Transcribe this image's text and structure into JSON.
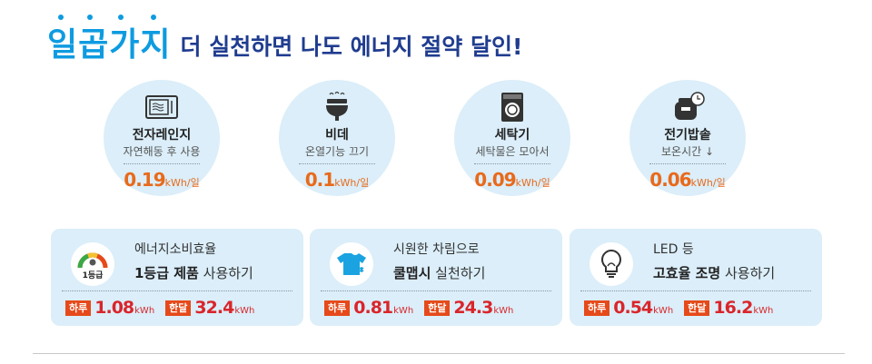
{
  "title": {
    "accent": "일곱가지",
    "rest": "더 실천하면 나도 에너지 절약 달인!"
  },
  "appliances": [
    {
      "name": "전자레인지",
      "tip": "자연해동 후 사용",
      "value": "0.19",
      "unit": "kWh/일",
      "icon": "microwave-icon"
    },
    {
      "name": "비데",
      "tip": "온열기능 끄기",
      "value": "0.1",
      "unit": "kWh/일",
      "icon": "bidet-icon"
    },
    {
      "name": "세탁기",
      "tip": "세탁물은 모아서",
      "value": "0.09",
      "unit": "kWh/일",
      "icon": "washing-machine-icon"
    },
    {
      "name": "전기밥솥",
      "tip": "보온시간 ↓",
      "value": "0.06",
      "unit": "kWh/일",
      "icon": "rice-cooker-icon"
    }
  ],
  "cards": [
    {
      "line1": "에너지소비효율",
      "line2_bold": "1등급 제품",
      "line2_rest": " 사용하기",
      "badge_text": "1등급",
      "icon": "efficiency-gauge-icon",
      "day_label": "하루",
      "day_value": "1.08",
      "day_unit": "kWh",
      "month_label": "한달",
      "month_value": "32.4",
      "month_unit": "kWh"
    },
    {
      "line1": "시원한 차림으로",
      "line2_bold": "쿨맵시",
      "line2_rest": " 실천하기",
      "icon": "cool-shirt-icon",
      "day_label": "하루",
      "day_value": "0.81",
      "day_unit": "kWh",
      "month_label": "한달",
      "month_value": "24.3",
      "month_unit": "kWh"
    },
    {
      "line1": "LED 등",
      "line2_bold": "고효율 조명",
      "line2_rest": " 사용하기",
      "icon": "light-bulb-icon",
      "day_label": "하루",
      "day_value": "0.54",
      "day_unit": "kWh",
      "month_label": "한달",
      "month_value": "16.2",
      "month_unit": "kWh"
    }
  ],
  "colors": {
    "accent_blue": "#0e9be0",
    "title_navy": "#1f3c8f",
    "panel_bg": "#dbeef9",
    "value_orange": "#e86a1c",
    "value_red": "#d9262b",
    "tag_red": "#e64a1a"
  }
}
